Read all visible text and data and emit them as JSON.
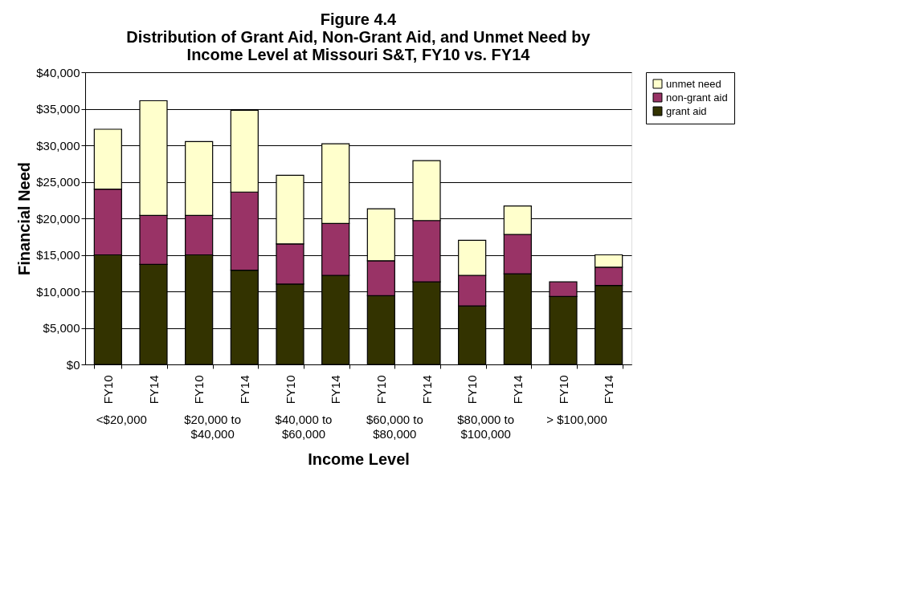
{
  "chart_data": {
    "type": "bar",
    "stacked": true,
    "title": "Figure 4.4",
    "subtitle": "Distribution of Grant Aid, Non-Grant Aid, and Unmet Need by Income Level at Missouri S&T, FY10 vs. FY14",
    "xlabel": "Income Level",
    "ylabel": "Financial Need",
    "categories": [
      "FY10",
      "FY14",
      "FY10",
      "FY14",
      "FY10",
      "FY14",
      "FY10",
      "FY14",
      "FY10",
      "FY14",
      "FY10",
      "FY14"
    ],
    "annotations": [
      "<$20,000",
      "$20,000 to $40,000",
      "$40,000 to $60,000",
      "$60,000 to $80,000",
      "$80,000 to $100,000",
      "> $100,000"
    ],
    "series": [
      {
        "name": "grant aid",
        "color": "#333300",
        "values": [
          15000,
          13700,
          15000,
          12900,
          11000,
          12200,
          9400,
          11300,
          8000,
          12400,
          9300,
          10800
        ]
      },
      {
        "name": "non-grant aid",
        "color": "#993366",
        "values": [
          9000,
          6700,
          5400,
          10700,
          5500,
          7100,
          4800,
          8400,
          4200,
          5400,
          2000,
          2500
        ]
      },
      {
        "name": "unmet need",
        "color": "#ffffcc",
        "values": [
          8200,
          15700,
          10100,
          11200,
          9400,
          10900,
          7100,
          8200,
          4800,
          3900,
          null,
          1700
        ]
      }
    ],
    "ylim": [
      0,
      40000
    ],
    "yticks": [
      {
        "value": 0,
        "label": "$0"
      },
      {
        "value": 5000,
        "label": "$5,000"
      },
      {
        "value": 10000,
        "label": "$10,000"
      },
      {
        "value": 15000,
        "label": "$15,000"
      },
      {
        "value": 20000,
        "label": "$20,000"
      },
      {
        "value": 25000,
        "label": "$25,000"
      },
      {
        "value": 30000,
        "label": "$30,000"
      },
      {
        "value": 35000,
        "label": "$35,000"
      },
      {
        "value": 40000,
        "label": "$40,000"
      }
    ],
    "grid": "y",
    "legend": "right"
  }
}
